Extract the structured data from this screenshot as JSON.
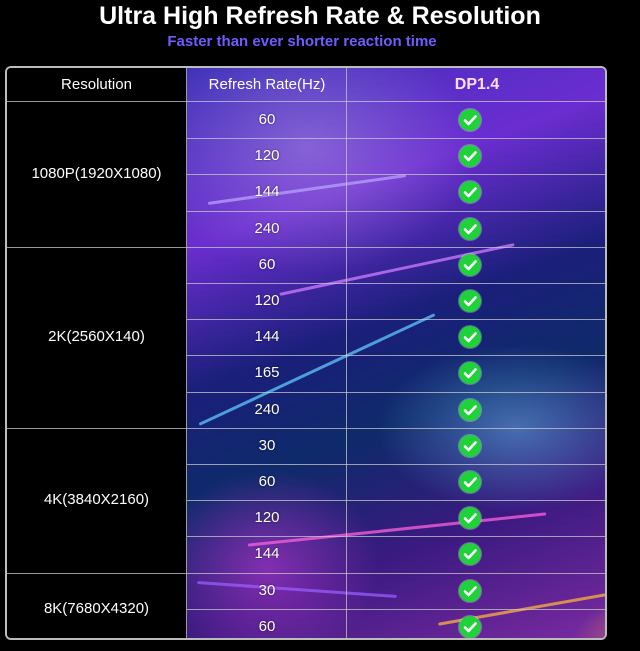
{
  "title": "Ultra High Refresh Rate & Resolution",
  "subtitle": "Faster than ever shorter reaction time",
  "header": {
    "resolution": "Resolution",
    "refresh_rate": "Refresh Rate(Hz)",
    "dp": "DP1.4"
  },
  "groups": [
    {
      "label": "1080P(1920X1080)",
      "rates": [
        "60",
        "120",
        "144",
        "240"
      ]
    },
    {
      "label": "2K(2560X140)",
      "rates": [
        "60",
        "120",
        "144",
        "165",
        "240"
      ]
    },
    {
      "label": "4K(3840X2160)",
      "rates": [
        "30",
        "60",
        "120",
        "144"
      ]
    },
    {
      "label": "8K(7680X4320)",
      "rates": [
        "30",
        "60"
      ]
    }
  ],
  "check_icon": "check-circle-icon",
  "colors": {
    "check": "#1fd23a",
    "subtitle": "#6e5cff"
  }
}
